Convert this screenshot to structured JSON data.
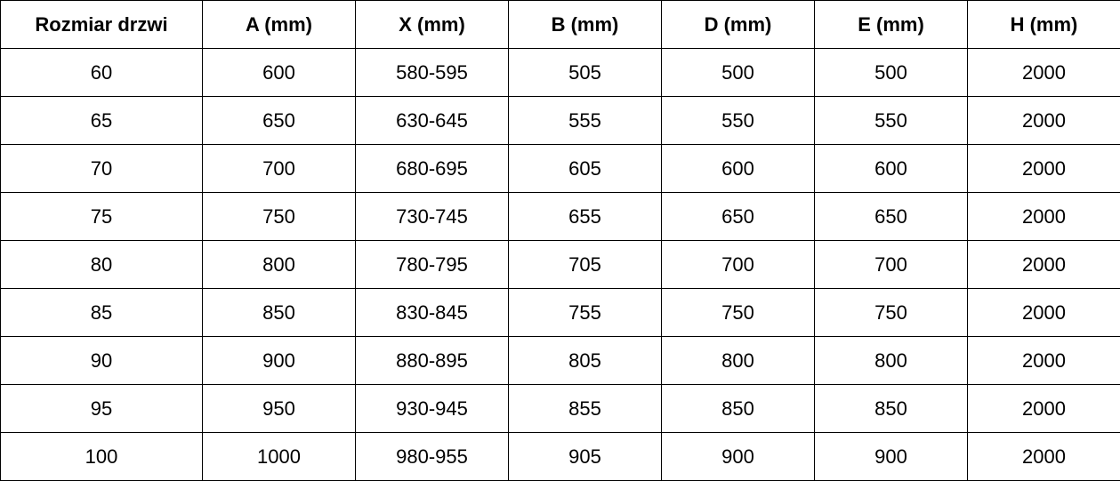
{
  "table": {
    "headers": [
      "Rozmiar drzwi",
      "A (mm)",
      "X (mm)",
      "B (mm)",
      "D (mm)",
      "E (mm)",
      "H (mm)"
    ],
    "rows": [
      [
        "60",
        "600",
        "580-595",
        "505",
        "500",
        "500",
        "2000"
      ],
      [
        "65",
        "650",
        "630-645",
        "555",
        "550",
        "550",
        "2000"
      ],
      [
        "70",
        "700",
        "680-695",
        "605",
        "600",
        "600",
        "2000"
      ],
      [
        "75",
        "750",
        "730-745",
        "655",
        "650",
        "650",
        "2000"
      ],
      [
        "80",
        "800",
        "780-795",
        "705",
        "700",
        "700",
        "2000"
      ],
      [
        "85",
        "850",
        "830-845",
        "755",
        "750",
        "750",
        "2000"
      ],
      [
        "90",
        "900",
        "880-895",
        "805",
        "800",
        "800",
        "2000"
      ],
      [
        "95",
        "950",
        "930-945",
        "855",
        "850",
        "850",
        "2000"
      ],
      [
        "100",
        "1000",
        "980-955",
        "905",
        "900",
        "900",
        "2000"
      ]
    ]
  }
}
